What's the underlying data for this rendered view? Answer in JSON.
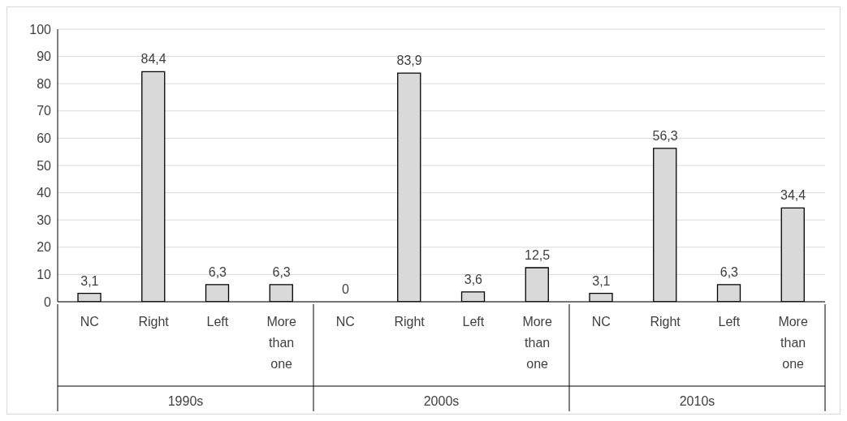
{
  "chart_data": {
    "type": "bar",
    "categories": [
      "NC",
      "Right",
      "Left",
      "More than one",
      "NC",
      "Right",
      "Left",
      "More than one",
      "NC",
      "Right",
      "Left",
      "More than one"
    ],
    "values": [
      3.1,
      84.4,
      6.3,
      6.3,
      0,
      83.9,
      3.6,
      12.5,
      3.1,
      56.3,
      6.3,
      34.4
    ],
    "value_labels": [
      "3,1",
      "84,4",
      "6,3",
      "6,3",
      "0",
      "83,9",
      "3,6",
      "12,5",
      "3,1",
      "56,3",
      "6,3",
      "34,4"
    ],
    "color": "#d9d9d9",
    "annotations": [
      "1990s",
      "2000s",
      "2010s"
    ],
    "ylim": [
      0,
      100
    ],
    "yticks": [
      0,
      10,
      20,
      30,
      40,
      50,
      60,
      70,
      80,
      90,
      100
    ],
    "grid": "y",
    "legend": false
  }
}
